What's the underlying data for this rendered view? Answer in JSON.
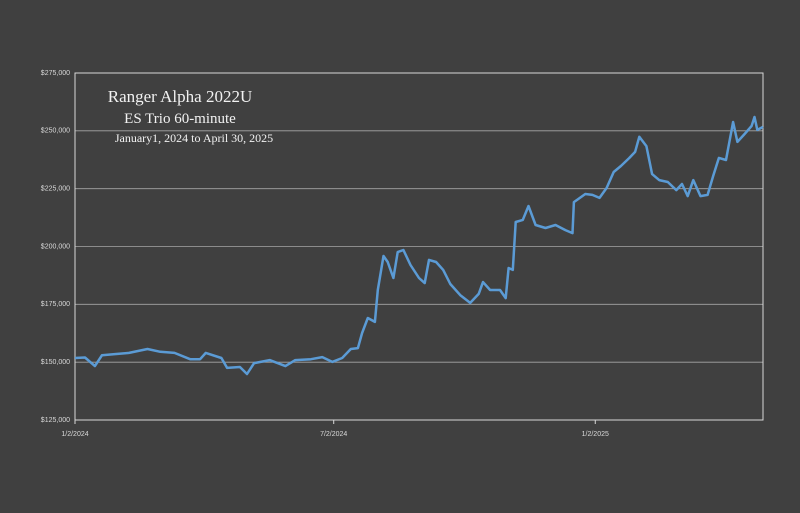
{
  "chart_data": {
    "type": "line",
    "title": "Ranger Alpha 2022U",
    "subtitle": "ES Trio 60-minute",
    "annotations": [
      "January1, 2024 to April 30, 2025"
    ],
    "x": [
      "1/2/2024",
      "1/9/2024",
      "1/16/2024",
      "1/21/2024",
      "1/30/2024",
      "2/9/2024",
      "2/22/2024",
      "3/2/2024",
      "3/12/2024",
      "3/23/2024",
      "3/30/2024",
      "4/3/2024",
      "4/14/2024",
      "4/18/2024",
      "4/27/2024",
      "5/2/2024",
      "5/7/2024",
      "5/18/2024",
      "5/29/2024",
      "6/5/2024",
      "6/16/2024",
      "6/24/2024",
      "7/1/2024",
      "7/8/2024",
      "7/14/2024",
      "7/19/2024",
      "7/22/2024",
      "7/26/2024",
      "7/31/2024",
      "8/2/2024",
      "8/6/2024",
      "8/9/2024",
      "8/13/2024",
      "8/16/2024",
      "8/20/2024",
      "8/25/2024",
      "8/31/2024",
      "9/4/2024",
      "9/7/2024",
      "9/12/2024",
      "9/17/2024",
      "9/22/2024",
      "9/29/2024",
      "10/6/2024",
      "10/12/2024",
      "10/15/2024",
      "10/20/2024",
      "10/27/2024",
      "10/31/2024",
      "11/2/2024",
      "11/5/2024",
      "11/7/2024",
      "11/12/2024",
      "11/16/2024",
      "11/21/2024",
      "11/28/2024",
      "12/5/2024",
      "12/12/2024",
      "12/17/2024",
      "12/18/2024",
      "12/26/2024",
      "12/31/2024",
      "1/5/2025",
      "1/10/2025",
      "1/15/2025",
      "1/20/2025",
      "1/26/2025",
      "1/30/2025",
      "2/2/2025",
      "2/7/2025",
      "2/11/2025",
      "2/16/2025",
      "2/22/2025",
      "2/28/2025",
      "3/4/2025",
      "3/8/2025",
      "3/12/2025",
      "3/17/2025",
      "3/22/2025",
      "3/26/2025",
      "3/30/2025",
      "4/4/2025",
      "4/9/2025",
      "4/12/2025",
      "4/17/2025",
      "4/22/2025",
      "4/24/2025",
      "4/26/2025",
      "4/30/2025"
    ],
    "values": [
      151800,
      152000,
      148300,
      153000,
      153500,
      154000,
      155700,
      154500,
      154000,
      151300,
      151300,
      154000,
      151800,
      147500,
      147900,
      144900,
      149600,
      150900,
      148300,
      150900,
      151300,
      152200,
      150100,
      151800,
      155700,
      156100,
      162600,
      169100,
      167400,
      181200,
      195900,
      193300,
      186400,
      197600,
      198500,
      192000,
      186400,
      184200,
      194200,
      193300,
      189900,
      183800,
      179000,
      175600,
      179500,
      184600,
      181200,
      181200,
      177700,
      190700,
      189900,
      210600,
      211500,
      217500,
      209300,
      208000,
      209300,
      207100,
      205800,
      219200,
      222700,
      222300,
      221000,
      225300,
      232200,
      234800,
      238300,
      240900,
      247400,
      243400,
      231300,
      228700,
      227900,
      224400,
      227000,
      221800,
      228700,
      221800,
      222300,
      230500,
      238300,
      237400,
      253800,
      245200,
      248600,
      252100,
      256000,
      250400,
      251700
    ],
    "color": "#5b9bd5",
    "xlim": [
      "1/2/2024",
      "4/30/2025"
    ],
    "xticks": [
      "1/2/2024",
      "7/2/2024",
      "1/2/2025"
    ],
    "ylim": [
      125000,
      275000
    ],
    "yticks": [
      {
        "value": 125000,
        "label": "$125,000"
      },
      {
        "value": 150000,
        "label": "$150,000"
      },
      {
        "value": 175000,
        "label": "$175,000"
      },
      {
        "value": 200000,
        "label": "$200,000"
      },
      {
        "value": 225000,
        "label": "$225,000"
      },
      {
        "value": 250000,
        "label": "$250,000"
      },
      {
        "value": 275000,
        "label": "$275,000"
      }
    ],
    "grid": true
  }
}
